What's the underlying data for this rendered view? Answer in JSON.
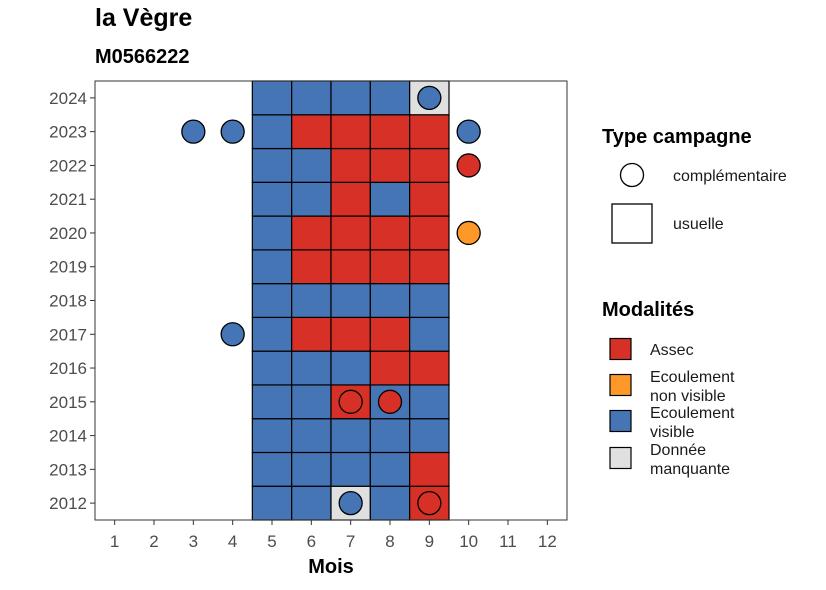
{
  "chart_data": {
    "type": "heatmap",
    "title": "la Vègre",
    "subtitle": "M0566222",
    "xlabel": "Mois",
    "ylabel": "",
    "x_ticks": [
      1,
      2,
      3,
      4,
      5,
      6,
      7,
      8,
      9,
      10,
      11,
      12
    ],
    "y_ticks": [
      2012,
      2013,
      2014,
      2015,
      2016,
      2017,
      2018,
      2019,
      2020,
      2021,
      2022,
      2023,
      2024
    ],
    "xlim": [
      0.5,
      12.5
    ],
    "ylim": [
      2011.5,
      2024.5
    ],
    "usuelle_months": [
      5,
      6,
      7,
      8,
      9
    ],
    "usuelle": {
      "2024": [
        "visible",
        "visible",
        "visible",
        "visible",
        "manquante"
      ],
      "2023": [
        "visible",
        "assec",
        "assec",
        "assec",
        "assec"
      ],
      "2022": [
        "visible",
        "visible",
        "assec",
        "assec",
        "assec"
      ],
      "2021": [
        "visible",
        "visible",
        "assec",
        "visible",
        "assec"
      ],
      "2020": [
        "visible",
        "assec",
        "assec",
        "assec",
        "assec"
      ],
      "2019": [
        "visible",
        "assec",
        "assec",
        "assec",
        "assec"
      ],
      "2018": [
        "visible",
        "visible",
        "visible",
        "visible",
        "visible"
      ],
      "2017": [
        "visible",
        "assec",
        "assec",
        "assec",
        "visible"
      ],
      "2016": [
        "visible",
        "visible",
        "visible",
        "assec",
        "assec"
      ],
      "2015": [
        "visible",
        "visible",
        "assec",
        "visible",
        "visible"
      ],
      "2014": [
        "visible",
        "visible",
        "visible",
        "visible",
        "visible"
      ],
      "2013": [
        "visible",
        "visible",
        "visible",
        "visible",
        "assec"
      ],
      "2012": [
        "visible",
        "visible",
        "manquante",
        "visible",
        "assec"
      ]
    },
    "complementaire": [
      {
        "year": 2024,
        "month": 9,
        "modalite": "visible"
      },
      {
        "year": 2023,
        "month": 3,
        "modalite": "visible"
      },
      {
        "year": 2023,
        "month": 4,
        "modalite": "visible"
      },
      {
        "year": 2023,
        "month": 10,
        "modalite": "visible"
      },
      {
        "year": 2022,
        "month": 10,
        "modalite": "assec"
      },
      {
        "year": 2020,
        "month": 10,
        "modalite": "non_visible"
      },
      {
        "year": 2017,
        "month": 4,
        "modalite": "visible"
      },
      {
        "year": 2015,
        "month": 7,
        "modalite": "assec"
      },
      {
        "year": 2015,
        "month": 8,
        "modalite": "assec"
      },
      {
        "year": 2012,
        "month": 7,
        "modalite": "visible"
      },
      {
        "year": 2012,
        "month": 9,
        "modalite": "assec"
      }
    ],
    "colors": {
      "assec": "#d73027",
      "non_visible": "#fe9929",
      "visible": "#4575b4",
      "manquante": "#e0e0e0"
    },
    "legend_type": {
      "title": "Type campagne",
      "items": [
        "complémentaire",
        "usuelle"
      ]
    },
    "legend_modalites": {
      "title": "Modalités",
      "items": [
        {
          "key": "assec",
          "lines": [
            "Assec"
          ]
        },
        {
          "key": "non_visible",
          "lines": [
            "Ecoulement",
            "non visible"
          ]
        },
        {
          "key": "visible",
          "lines": [
            "Ecoulement",
            "visible"
          ]
        },
        {
          "key": "manquante",
          "lines": [
            "Donnée",
            "manquante"
          ]
        }
      ]
    },
    "legend_position": "right",
    "grid": false
  }
}
